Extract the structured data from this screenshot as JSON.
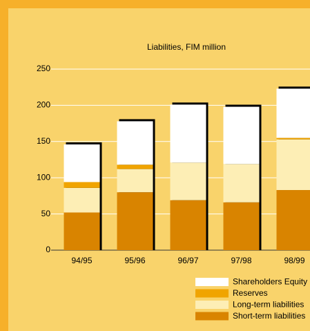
{
  "chart_data": {
    "type": "stacked_bar",
    "title": "Liabilities, FIM million",
    "categories": [
      "94/95",
      "95/96",
      "96/97",
      "97/98",
      "98/99"
    ],
    "series": [
      {
        "name": "Short-term liabilities",
        "color": "#d98400",
        "values": [
          52,
          80,
          69,
          66,
          83
        ]
      },
      {
        "name": "Long-term liabilities",
        "color": "#fdeeb5",
        "values": [
          34,
          32,
          52,
          53,
          70
        ]
      },
      {
        "name": "Reserves",
        "color": "#f0a400",
        "values": [
          8,
          6,
          0,
          0,
          2
        ]
      },
      {
        "name": "Shareholders Equity",
        "color": "#ffffff",
        "values": [
          52,
          60,
          80,
          79,
          68
        ]
      }
    ],
    "ylim": [
      0,
      250
    ],
    "yticks": [
      0,
      50,
      100,
      150,
      200,
      250
    ],
    "grid": true
  }
}
